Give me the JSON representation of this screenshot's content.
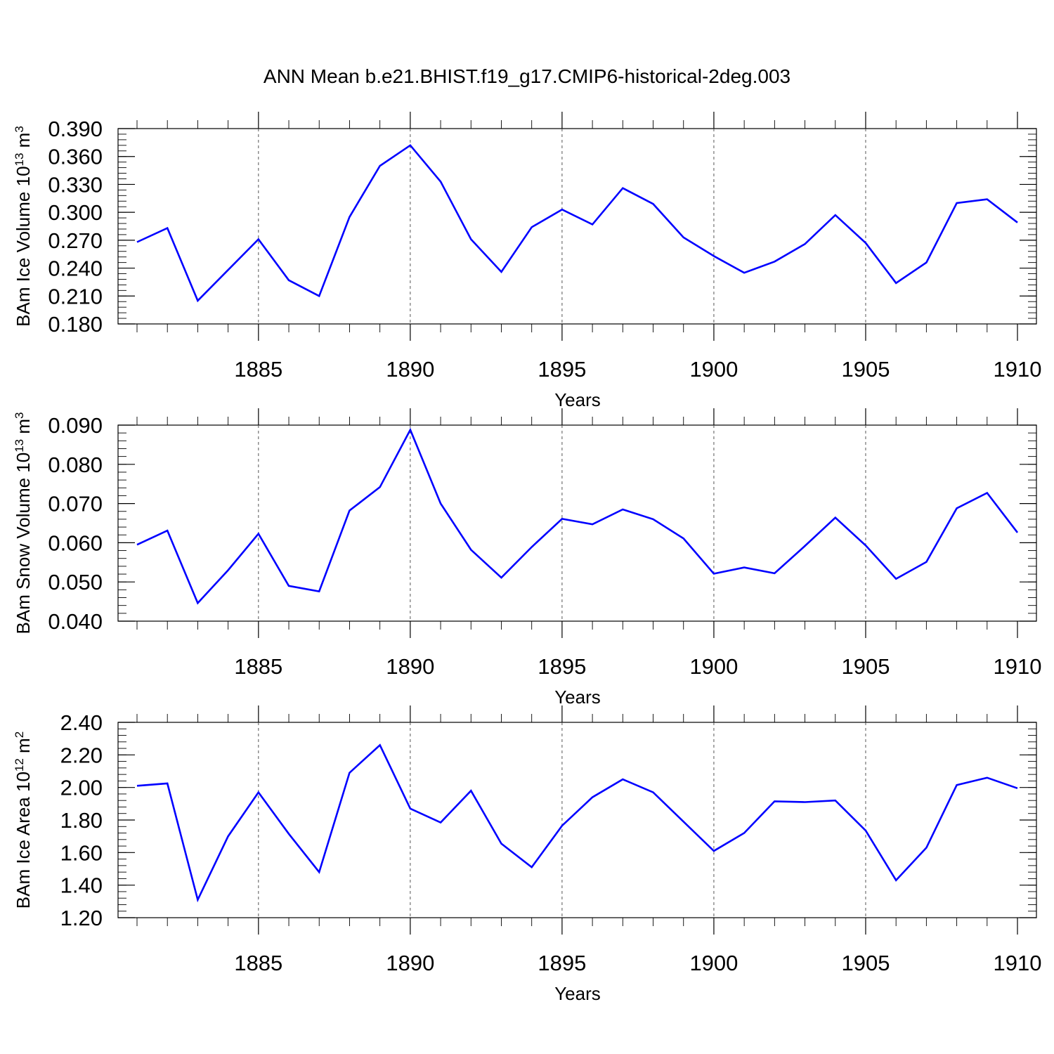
{
  "title": "ANN Mean b.e21.BHIST.f19_g17.CMIP6-historical-2deg.003",
  "colors": {
    "series": "#0000ff",
    "grid": "#555555",
    "axes": "#000000"
  },
  "chart_data": [
    {
      "type": "line",
      "ylabel": {
        "main": "BAm Ice Volume 10",
        "sup": "13",
        "unit": " m",
        "unit_sup": "3"
      },
      "xlabel": "Years",
      "xlim": [
        1881,
        1910
      ],
      "ylim": [
        0.18,
        0.39
      ],
      "yticks": [
        0.18,
        0.21,
        0.24,
        0.27,
        0.3,
        0.33,
        0.36,
        0.39
      ],
      "ytick_labels": [
        "0.180",
        "0.210",
        "0.240",
        "0.270",
        "0.300",
        "0.330",
        "0.360",
        "0.390"
      ],
      "y_minor_step": 0.006,
      "xticks": [
        1885,
        1890,
        1895,
        1900,
        1905,
        1910
      ],
      "xtick_labels": [
        "1885",
        "1890",
        "1895",
        "1900",
        "1905",
        "1910"
      ],
      "grid": "vertical dashed at major x ticks",
      "x": [
        1881,
        1882,
        1883,
        1884,
        1885,
        1886,
        1887,
        1888,
        1889,
        1890,
        1891,
        1892,
        1893,
        1894,
        1895,
        1896,
        1897,
        1898,
        1899,
        1900,
        1901,
        1902,
        1903,
        1904,
        1905,
        1906,
        1907,
        1908,
        1909,
        1910
      ],
      "y": [
        0.268,
        0.283,
        0.205,
        0.238,
        0.271,
        0.227,
        0.21,
        0.295,
        0.35,
        0.372,
        0.333,
        0.271,
        0.236,
        0.284,
        0.303,
        0.287,
        0.326,
        0.309,
        0.273,
        0.253,
        0.235,
        0.247,
        0.266,
        0.297,
        0.267,
        0.224,
        0.246,
        0.31,
        0.314,
        0.289
      ]
    },
    {
      "type": "line",
      "ylabel": {
        "main": "BAm Snow Volume 10",
        "sup": "13",
        "unit": " m",
        "unit_sup": "3"
      },
      "xlabel": "Years",
      "xlim": [
        1881,
        1910
      ],
      "ylim": [
        0.04,
        0.09
      ],
      "yticks": [
        0.04,
        0.05,
        0.06,
        0.07,
        0.08,
        0.09
      ],
      "ytick_labels": [
        "0.040",
        "0.050",
        "0.060",
        "0.070",
        "0.080",
        "0.090"
      ],
      "y_minor_step": 0.002,
      "xticks": [
        1885,
        1890,
        1895,
        1900,
        1905,
        1910
      ],
      "xtick_labels": [
        "1885",
        "1890",
        "1895",
        "1900",
        "1905",
        "1910"
      ],
      "grid": "vertical dashed at major x ticks",
      "x": [
        1881,
        1882,
        1883,
        1884,
        1885,
        1886,
        1887,
        1888,
        1889,
        1890,
        1891,
        1892,
        1893,
        1894,
        1895,
        1896,
        1897,
        1898,
        1899,
        1900,
        1901,
        1902,
        1903,
        1904,
        1905,
        1906,
        1907,
        1908,
        1909,
        1910
      ],
      "y": [
        0.0595,
        0.0631,
        0.0446,
        0.053,
        0.0623,
        0.049,
        0.0476,
        0.0682,
        0.0742,
        0.0888,
        0.07,
        0.0582,
        0.0511,
        0.0589,
        0.0661,
        0.0647,
        0.0685,
        0.066,
        0.0611,
        0.0521,
        0.0537,
        0.0522,
        0.0592,
        0.0664,
        0.0593,
        0.0508,
        0.0551,
        0.0688,
        0.0727,
        0.0626
      ]
    },
    {
      "type": "line",
      "ylabel": {
        "main": "BAm Ice Area 10",
        "sup": "12",
        "unit": " m",
        "unit_sup": "2"
      },
      "xlabel": "Years",
      "xlim": [
        1881,
        1910
      ],
      "ylim": [
        1.2,
        2.4
      ],
      "yticks": [
        1.2,
        1.4,
        1.6,
        1.8,
        2.0,
        2.2,
        2.4
      ],
      "ytick_labels": [
        "1.20",
        "1.40",
        "1.60",
        "1.80",
        "2.00",
        "2.20",
        "2.40"
      ],
      "y_minor_step": 0.04,
      "xticks": [
        1885,
        1890,
        1895,
        1900,
        1905,
        1910
      ],
      "xtick_labels": [
        "1885",
        "1890",
        "1895",
        "1900",
        "1905",
        "1910"
      ],
      "grid": "vertical dashed at major x ticks",
      "x": [
        1881,
        1882,
        1883,
        1884,
        1885,
        1886,
        1887,
        1888,
        1889,
        1890,
        1891,
        1892,
        1893,
        1894,
        1895,
        1896,
        1897,
        1898,
        1899,
        1900,
        1901,
        1902,
        1903,
        1904,
        1905,
        1906,
        1907,
        1908,
        1909,
        1910
      ],
      "y": [
        2.01,
        2.025,
        1.31,
        1.7,
        1.97,
        1.715,
        1.48,
        2.09,
        2.26,
        1.87,
        1.785,
        1.98,
        1.655,
        1.51,
        1.765,
        1.94,
        2.05,
        1.97,
        1.79,
        1.61,
        1.72,
        1.915,
        1.91,
        1.92,
        1.735,
        1.43,
        1.63,
        2.015,
        2.06,
        1.995
      ]
    }
  ]
}
